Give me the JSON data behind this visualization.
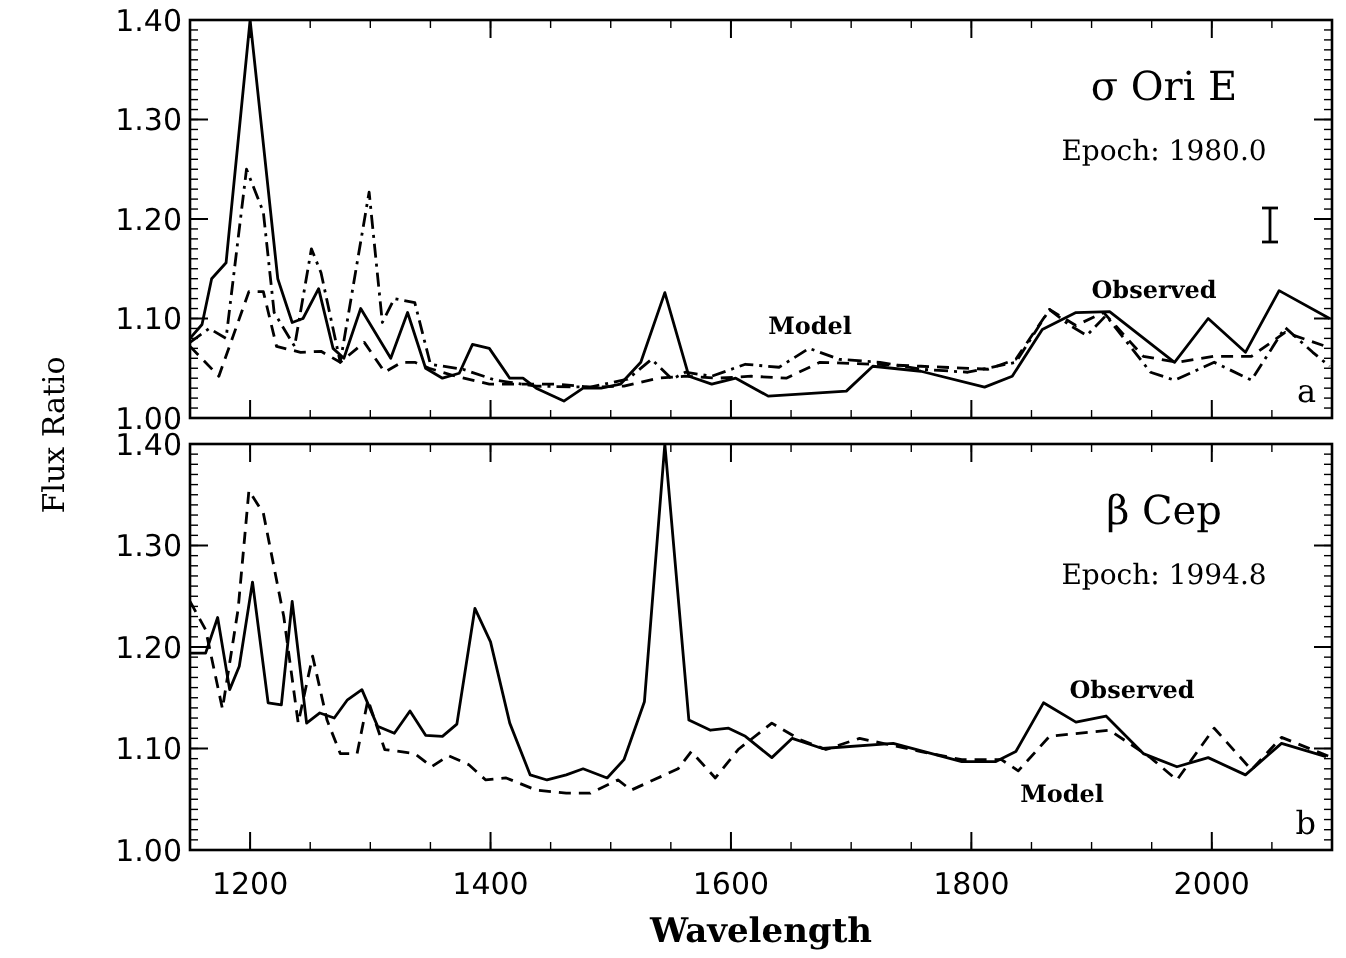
{
  "chart_data": [
    {
      "type": "line",
      "title": "σ Ori E",
      "subtitle": "Epoch: 1980.0",
      "ylabel": "Flux Ratio",
      "xlim": [
        1150,
        2100
      ],
      "xticks": [
        1200,
        1400,
        1600,
        1800,
        2000
      ],
      "ylim": [
        1.0,
        1.4
      ],
      "yticks": [
        {
          "value": 1.0,
          "label": "1.00"
        },
        {
          "value": 1.1,
          "label": "1.10"
        },
        {
          "value": 1.2,
          "label": "1.20"
        },
        {
          "value": 1.3,
          "label": "1.30"
        },
        {
          "value": 1.4,
          "label": "1.40"
        }
      ],
      "tick_labels": "y",
      "annotations": [
        "a",
        "Model",
        "Observed"
      ],
      "series": [
        {
          "color": "#000000",
          "line_style": "solid",
          "x": [
            1150,
            1160,
            1168,
            1180,
            1200,
            1223,
            1235,
            1244,
            1257,
            1269,
            1278,
            1292,
            1317,
            1331,
            1346,
            1360,
            1374,
            1385,
            1399,
            1416,
            1427,
            1438,
            1461,
            1477,
            1492,
            1508,
            1525,
            1545,
            1565,
            1584,
            1604,
            1631,
            1696,
            1718,
            1758,
            1811,
            1834,
            1859,
            1887,
            1915,
            1969,
            1997,
            2028,
            2056,
            2098
          ],
          "values": [
            1.08,
            1.094,
            1.14,
            1.156,
            1.4,
            1.14,
            1.096,
            1.1,
            1.13,
            1.07,
            1.06,
            1.11,
            1.06,
            1.106,
            1.05,
            1.04,
            1.045,
            1.074,
            1.07,
            1.04,
            1.04,
            1.03,
            1.017,
            1.03,
            1.03,
            1.034,
            1.056,
            1.126,
            1.042,
            1.034,
            1.04,
            1.022,
            1.027,
            1.052,
            1.047,
            1.031,
            1.042,
            1.089,
            1.106,
            1.107,
            1.056,
            1.1,
            1.066,
            1.128,
            1.1
          ]
        },
        {
          "color": "#000000",
          "line_style": "dashed",
          "x": [
            1150,
            1174,
            1199,
            1211,
            1222,
            1242,
            1259,
            1275,
            1295,
            1312,
            1326,
            1337,
            1349,
            1371,
            1399,
            1427,
            1455,
            1483,
            1511,
            1539,
            1562,
            1589,
            1617,
            1646,
            1674,
            1718,
            1758,
            1814,
            1837,
            1865,
            1887,
            1910,
            1943,
            1971,
            2002,
            2033,
            2061,
            2095
          ],
          "values": [
            1.072,
            1.042,
            1.127,
            1.127,
            1.072,
            1.066,
            1.067,
            1.056,
            1.076,
            1.046,
            1.056,
            1.056,
            1.05,
            1.042,
            1.034,
            1.034,
            1.034,
            1.031,
            1.032,
            1.04,
            1.042,
            1.04,
            1.042,
            1.04,
            1.056,
            1.054,
            1.052,
            1.049,
            1.059,
            1.109,
            1.093,
            1.106,
            1.062,
            1.056,
            1.062,
            1.062,
            1.086,
            1.072
          ]
        },
        {
          "color": "#000000",
          "line_style": "dashdot",
          "x": [
            1150,
            1166,
            1180,
            1197,
            1211,
            1220,
            1237,
            1251,
            1259,
            1275,
            1299,
            1310,
            1320,
            1337,
            1350,
            1377,
            1404,
            1438,
            1483,
            1514,
            1534,
            1551,
            1562,
            1584,
            1612,
            1640,
            1665,
            1690,
            1724,
            1758,
            1797,
            1837,
            1865,
            1882,
            1896,
            1912,
            1949,
            1969,
            2002,
            2033,
            2061,
            2084,
            2098
          ],
          "values": [
            1.076,
            1.09,
            1.08,
            1.25,
            1.207,
            1.106,
            1.072,
            1.17,
            1.146,
            1.056,
            1.227,
            1.096,
            1.12,
            1.116,
            1.054,
            1.049,
            1.038,
            1.032,
            1.031,
            1.039,
            1.059,
            1.039,
            1.046,
            1.042,
            1.054,
            1.051,
            1.07,
            1.059,
            1.056,
            1.049,
            1.046,
            1.056,
            1.109,
            1.093,
            1.083,
            1.103,
            1.046,
            1.038,
            1.056,
            1.038,
            1.091,
            1.066,
            1.052
          ]
        }
      ]
    },
    {
      "type": "line",
      "title": "β Cep",
      "subtitle": "Epoch: 1994.8",
      "xlabel": "Wavelength",
      "xlim": [
        1150,
        2100
      ],
      "xticks": [
        1200,
        1400,
        1600,
        1800,
        2000
      ],
      "ylim": [
        1.0,
        1.4
      ],
      "yticks": [
        {
          "value": 1.0,
          "label": "1.00"
        },
        {
          "value": 1.1,
          "label": "1.10"
        },
        {
          "value": 1.2,
          "label": "1.20"
        },
        {
          "value": 1.3,
          "label": "1.30"
        },
        {
          "value": 1.4,
          "label": "1.40"
        }
      ],
      "annotations": [
        "b",
        "Observed",
        "Model"
      ],
      "series": [
        {
          "color": "#000000",
          "line_style": "solid",
          "x": [
            1150,
            1163,
            1173,
            1183,
            1191,
            1202,
            1215,
            1226,
            1235,
            1247,
            1258,
            1270,
            1281,
            1293,
            1306,
            1320,
            1333,
            1346,
            1360,
            1372,
            1387,
            1400,
            1416,
            1433,
            1447,
            1463,
            1477,
            1497,
            1511,
            1528,
            1545,
            1565,
            1583,
            1598,
            1612,
            1634,
            1651,
            1676,
            1735,
            1792,
            1820,
            1837,
            1860,
            1887,
            1912,
            1943,
            1971,
            1997,
            2028,
            2058,
            2095
          ],
          "values": [
            1.194,
            1.194,
            1.229,
            1.158,
            1.181,
            1.264,
            1.145,
            1.143,
            1.245,
            1.125,
            1.135,
            1.13,
            1.148,
            1.158,
            1.122,
            1.115,
            1.137,
            1.113,
            1.112,
            1.124,
            1.238,
            1.205,
            1.125,
            1.074,
            1.069,
            1.074,
            1.08,
            1.071,
            1.089,
            1.146,
            1.4,
            1.128,
            1.118,
            1.12,
            1.112,
            1.091,
            1.11,
            1.1,
            1.105,
            1.087,
            1.087,
            1.097,
            1.145,
            1.126,
            1.132,
            1.095,
            1.082,
            1.091,
            1.074,
            1.105,
            1.092
          ]
        },
        {
          "color": "#000000",
          "line_style": "dashed",
          "x": [
            1150,
            1163,
            1177,
            1190,
            1199,
            1211,
            1228,
            1240,
            1252,
            1264,
            1275,
            1289,
            1298,
            1312,
            1337,
            1351,
            1365,
            1382,
            1396,
            1413,
            1438,
            1463,
            1483,
            1506,
            1517,
            1556,
            1567,
            1587,
            1606,
            1634,
            1657,
            1679,
            1707,
            1758,
            1792,
            1825,
            1839,
            1865,
            1915,
            1949,
            1971,
            2002,
            2033,
            2058,
            2098
          ],
          "values": [
            1.245,
            1.217,
            1.139,
            1.237,
            1.354,
            1.332,
            1.23,
            1.125,
            1.191,
            1.128,
            1.095,
            1.095,
            1.148,
            1.099,
            1.095,
            1.082,
            1.093,
            1.084,
            1.069,
            1.071,
            1.059,
            1.056,
            1.056,
            1.069,
            1.059,
            1.08,
            1.097,
            1.071,
            1.099,
            1.125,
            1.109,
            1.099,
            1.11,
            1.097,
            1.089,
            1.089,
            1.078,
            1.112,
            1.118,
            1.091,
            1.069,
            1.12,
            1.079,
            1.111,
            1.092
          ]
        }
      ]
    }
  ]
}
